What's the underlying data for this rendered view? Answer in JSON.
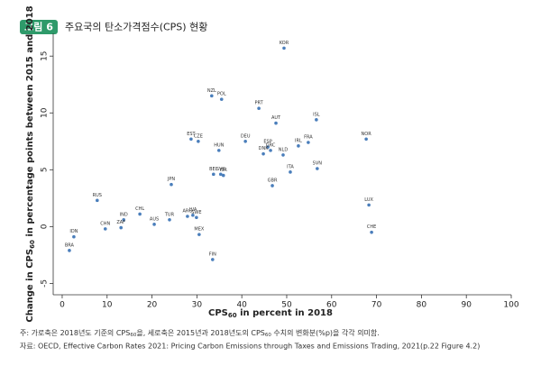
{
  "chart_data": {
    "type": "scatter",
    "figure_label": "그림 6",
    "title": "주요국의 탄소가격점수(CPS) 현황",
    "xlabel": [
      "CPS",
      "60",
      " in percent in 2018"
    ],
    "ylabel": [
      "Change in CPS",
      "60",
      " in percentage points between 2015 and 2018"
    ],
    "labels": [
      "KOR",
      "NZL",
      "POL",
      "PRT",
      "AUT",
      "ISL",
      "NOR",
      "EST",
      "CZE",
      "DEU",
      "FRA",
      "HUN",
      "ESP",
      "IRL",
      "GRC",
      "NLD",
      "DNK",
      "SVN",
      "ITA",
      "BEL",
      "SVK",
      "ISR",
      "GBR",
      "JPN",
      "LUX",
      "RUS",
      "CHL",
      "IND",
      "TUR",
      "LVA",
      "SWE",
      "AUS",
      "CHN",
      "ZAF",
      "ARG",
      "MEX",
      "CHE",
      "IDN",
      "BRA",
      "FIN"
    ],
    "x": [
      49.4,
      33.3,
      35.5,
      43.8,
      47.6,
      56.6,
      67.7,
      28.7,
      30.3,
      40.8,
      54.8,
      34.9,
      45.8,
      52.6,
      46.4,
      49.2,
      44.8,
      56.8,
      50.8,
      33.7,
      35.3,
      35.9,
      46.8,
      24.3,
      68.3,
      7.8,
      17.3,
      13.7,
      23.9,
      29.1,
      29.9,
      20.5,
      9.6,
      13.1,
      27.9,
      30.5,
      68.9,
      2.6,
      1.6,
      33.5
    ],
    "values": [
      15.7,
      11.5,
      11.2,
      10.4,
      9.1,
      9.4,
      7.7,
      7.7,
      7.5,
      7.5,
      7.4,
      6.7,
      7.0,
      7.1,
      6.7,
      6.3,
      6.4,
      5.1,
      4.8,
      4.6,
      4.6,
      4.5,
      3.6,
      3.7,
      1.9,
      2.3,
      1.1,
      0.6,
      0.6,
      1.0,
      0.8,
      0.2,
      -0.2,
      -0.1,
      0.9,
      -0.7,
      -0.5,
      -0.9,
      -2.1,
      -2.9
    ],
    "color": "#4a7ebb",
    "xlim": [
      -2,
      100
    ],
    "xticks": [
      0,
      10,
      20,
      30,
      40,
      50,
      60,
      70,
      80,
      90,
      100
    ],
    "ylim": [
      -6,
      17
    ],
    "yticks": [
      -5,
      0,
      5,
      10,
      15
    ],
    "note": [
      "주: 가로축은 2018년도 기준의 CPS",
      "60",
      "을, 세로축은 2015년과 2018년도의 CPS",
      "60",
      " 수치의 변화분(%p)을 각각 의미함."
    ],
    "source": "자료: OECD, Effective Carbon Rates 2021: Pricing Carbon Emissions through Taxes and Emissions Trading, 2021(p.22 Figure 4.2)"
  }
}
